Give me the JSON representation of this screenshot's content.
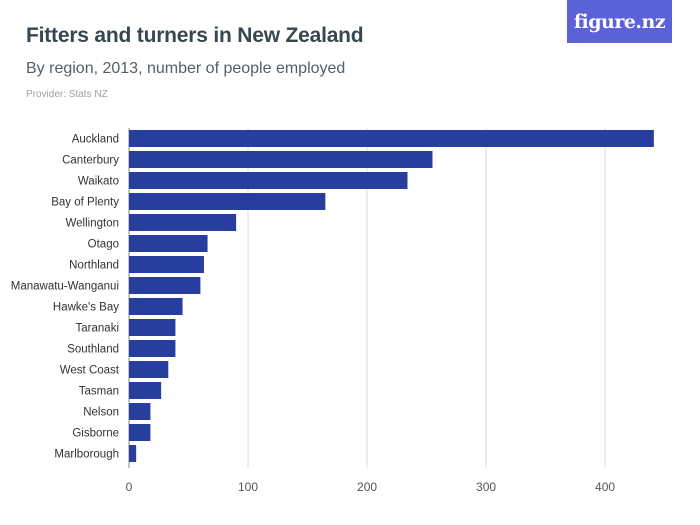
{
  "header": {
    "title": "Fitters and turners in New Zealand",
    "subtitle": "By region, 2013, number of people employed",
    "provider": "Provider: Stats NZ"
  },
  "logo": {
    "text": "figure.nz"
  },
  "colors": {
    "bar": "#283e9e",
    "grid": "#dcdcdc",
    "label": "#333333",
    "logo_bg": "#5b61d6"
  },
  "chart_data": {
    "type": "bar",
    "orientation": "horizontal",
    "title": "Fitters and turners in New Zealand",
    "subtitle": "By region, 2013, number of people employed",
    "categories": [
      "Auckland",
      "Canterbury",
      "Waikato",
      "Bay of Plenty",
      "Wellington",
      "Otago",
      "Northland",
      "Manawatu-Wanganui",
      "Hawke's Bay",
      "Taranaki",
      "Southland",
      "West Coast",
      "Tasman",
      "Nelson",
      "Gisborne",
      "Marlborough"
    ],
    "values": [
      441,
      255,
      234,
      165,
      90,
      66,
      63,
      60,
      45,
      39,
      39,
      33,
      27,
      18,
      18,
      6
    ],
    "xlabel": "",
    "ylabel": "",
    "xlim": [
      0,
      447
    ],
    "xticks": [
      0,
      100,
      200,
      300,
      400
    ],
    "grid": true,
    "legend": "none"
  }
}
